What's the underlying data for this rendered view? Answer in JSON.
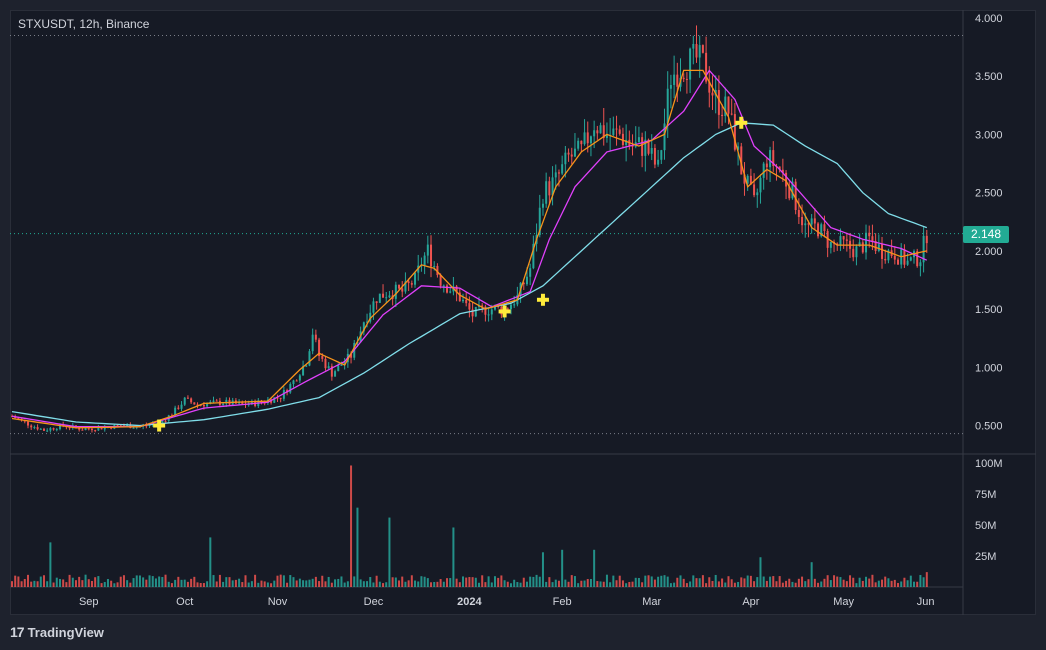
{
  "title": "STXUSDT, 12h, Binance",
  "logo_text": "TradingView",
  "last_price_label": "2.148",
  "colors": {
    "up": "#26a69a",
    "down": "#ef5350",
    "ma_fast": "#f7931a",
    "ma_mid": "#e040fb",
    "ma_slow": "#80deea",
    "marker": "#ffeb3b",
    "price_line": "#22ab94",
    "background": "#161a25"
  },
  "chart_data": {
    "type": "candlestick",
    "symbol": "STXUSDT",
    "interval": "12h",
    "exchange": "Binance",
    "x_tick_labels": [
      "Sep",
      "Oct",
      "Nov",
      "Dec",
      "2024",
      "Feb",
      "Mar",
      "Apr",
      "May",
      "Jun"
    ],
    "y_tick_labels": [
      "4.000",
      "3.500",
      "3.000",
      "2.500",
      "2.000",
      "1.500",
      "1.000",
      "0.500"
    ],
    "ylim": [
      0.35,
      4.0
    ],
    "volume_tick_labels": [
      "100M",
      "75M",
      "50M",
      "25M"
    ],
    "volume_ylim": [
      0,
      100
    ],
    "last_price": 2.148,
    "dotted_levels": [
      3.85,
      2.148,
      0.43
    ],
    "price_path": [
      [
        0,
        0.58
      ],
      [
        6,
        0.5
      ],
      [
        10,
        0.46
      ],
      [
        16,
        0.5
      ],
      [
        22,
        0.47
      ],
      [
        28,
        0.48
      ],
      [
        34,
        0.5
      ],
      [
        40,
        0.49
      ],
      [
        46,
        0.52
      ],
      [
        50,
        0.6
      ],
      [
        54,
        0.72
      ],
      [
        58,
        0.68
      ],
      [
        66,
        0.7
      ],
      [
        72,
        0.68
      ],
      [
        78,
        0.7
      ],
      [
        84,
        0.75
      ],
      [
        88,
        0.88
      ],
      [
        92,
        1.05
      ],
      [
        94,
        1.3
      ],
      [
        96,
        1.1
      ],
      [
        100,
        0.95
      ],
      [
        106,
        1.1
      ],
      [
        110,
        1.4
      ],
      [
        114,
        1.6
      ],
      [
        118,
        1.65
      ],
      [
        122,
        1.65
      ],
      [
        126,
        1.75
      ],
      [
        128,
        1.9
      ],
      [
        130,
        2.0
      ],
      [
        134,
        1.75
      ],
      [
        140,
        1.6
      ],
      [
        144,
        1.45
      ],
      [
        148,
        1.5
      ],
      [
        154,
        1.5
      ],
      [
        158,
        1.6
      ],
      [
        162,
        1.85
      ],
      [
        166,
        2.5
      ],
      [
        170,
        2.6
      ],
      [
        174,
        2.8
      ],
      [
        178,
        2.85
      ],
      [
        182,
        3.1
      ],
      [
        186,
        3.0
      ],
      [
        190,
        3.0
      ],
      [
        194,
        2.9
      ],
      [
        198,
        2.9
      ],
      [
        202,
        2.7
      ],
      [
        206,
        3.5
      ],
      [
        210,
        3.6
      ],
      [
        214,
        3.65
      ],
      [
        216,
        3.6
      ],
      [
        220,
        3.3
      ],
      [
        224,
        3.2
      ],
      [
        228,
        2.7
      ],
      [
        232,
        2.4
      ],
      [
        236,
        2.8
      ],
      [
        240,
        2.7
      ],
      [
        244,
        2.5
      ],
      [
        248,
        2.2
      ],
      [
        252,
        2.2
      ],
      [
        256,
        2.05
      ],
      [
        260,
        2.05
      ],
      [
        264,
        2.0
      ],
      [
        268,
        2.1
      ],
      [
        272,
        2.0
      ],
      [
        276,
        1.98
      ],
      [
        280,
        1.9
      ],
      [
        284,
        1.95
      ],
      [
        286,
        2.148
      ]
    ],
    "ma_fast_path": [
      [
        0,
        0.56
      ],
      [
        20,
        0.48
      ],
      [
        40,
        0.49
      ],
      [
        50,
        0.58
      ],
      [
        60,
        0.69
      ],
      [
        80,
        0.71
      ],
      [
        90,
        0.98
      ],
      [
        96,
        1.12
      ],
      [
        104,
        1.02
      ],
      [
        112,
        1.42
      ],
      [
        120,
        1.63
      ],
      [
        128,
        1.88
      ],
      [
        132,
        1.85
      ],
      [
        140,
        1.62
      ],
      [
        148,
        1.5
      ],
      [
        158,
        1.58
      ],
      [
        164,
        2.1
      ],
      [
        170,
        2.55
      ],
      [
        178,
        2.85
      ],
      [
        186,
        3.0
      ],
      [
        196,
        2.9
      ],
      [
        204,
        3.0
      ],
      [
        210,
        3.55
      ],
      [
        216,
        3.55
      ],
      [
        224,
        3.15
      ],
      [
        230,
        2.55
      ],
      [
        236,
        2.7
      ],
      [
        242,
        2.6
      ],
      [
        250,
        2.2
      ],
      [
        258,
        2.05
      ],
      [
        268,
        2.05
      ],
      [
        278,
        1.95
      ],
      [
        286,
        2.0
      ]
    ],
    "ma_mid_path": [
      [
        0,
        0.58
      ],
      [
        20,
        0.49
      ],
      [
        40,
        0.49
      ],
      [
        60,
        0.65
      ],
      [
        80,
        0.7
      ],
      [
        92,
        0.88
      ],
      [
        104,
        1.05
      ],
      [
        116,
        1.45
      ],
      [
        128,
        1.7
      ],
      [
        140,
        1.68
      ],
      [
        150,
        1.52
      ],
      [
        162,
        1.65
      ],
      [
        168,
        2.1
      ],
      [
        176,
        2.55
      ],
      [
        186,
        2.85
      ],
      [
        200,
        2.95
      ],
      [
        210,
        3.2
      ],
      [
        218,
        3.55
      ],
      [
        226,
        3.3
      ],
      [
        232,
        2.9
      ],
      [
        240,
        2.7
      ],
      [
        248,
        2.45
      ],
      [
        256,
        2.2
      ],
      [
        266,
        2.1
      ],
      [
        278,
        2.02
      ],
      [
        286,
        1.92
      ]
    ],
    "ma_slow_path": [
      [
        0,
        0.62
      ],
      [
        20,
        0.53
      ],
      [
        40,
        0.5
      ],
      [
        60,
        0.55
      ],
      [
        80,
        0.64
      ],
      [
        96,
        0.74
      ],
      [
        110,
        0.95
      ],
      [
        124,
        1.2
      ],
      [
        140,
        1.46
      ],
      [
        156,
        1.55
      ],
      [
        166,
        1.7
      ],
      [
        180,
        2.05
      ],
      [
        196,
        2.45
      ],
      [
        210,
        2.8
      ],
      [
        220,
        3.0
      ],
      [
        228,
        3.1
      ],
      [
        238,
        3.08
      ],
      [
        248,
        2.9
      ],
      [
        258,
        2.75
      ],
      [
        266,
        2.5
      ],
      [
        274,
        2.32
      ],
      [
        286,
        2.2
      ]
    ],
    "cross_markers": [
      {
        "i": 46,
        "price": 0.5
      },
      {
        "i": 154,
        "price": 1.48
      },
      {
        "i": 166,
        "price": 1.58
      },
      {
        "i": 228,
        "price": 3.1
      }
    ],
    "volume_spikes": [
      {
        "i": 12,
        "v": 36
      },
      {
        "i": 62,
        "v": 40
      },
      {
        "i": 106,
        "v": 98
      },
      {
        "i": 108,
        "v": 64
      },
      {
        "i": 118,
        "v": 56
      },
      {
        "i": 138,
        "v": 48
      },
      {
        "i": 166,
        "v": 28
      },
      {
        "i": 172,
        "v": 30
      },
      {
        "i": 182,
        "v": 30
      },
      {
        "i": 234,
        "v": 24
      },
      {
        "i": 250,
        "v": 20
      },
      {
        "i": 286,
        "v": 12
      }
    ]
  }
}
